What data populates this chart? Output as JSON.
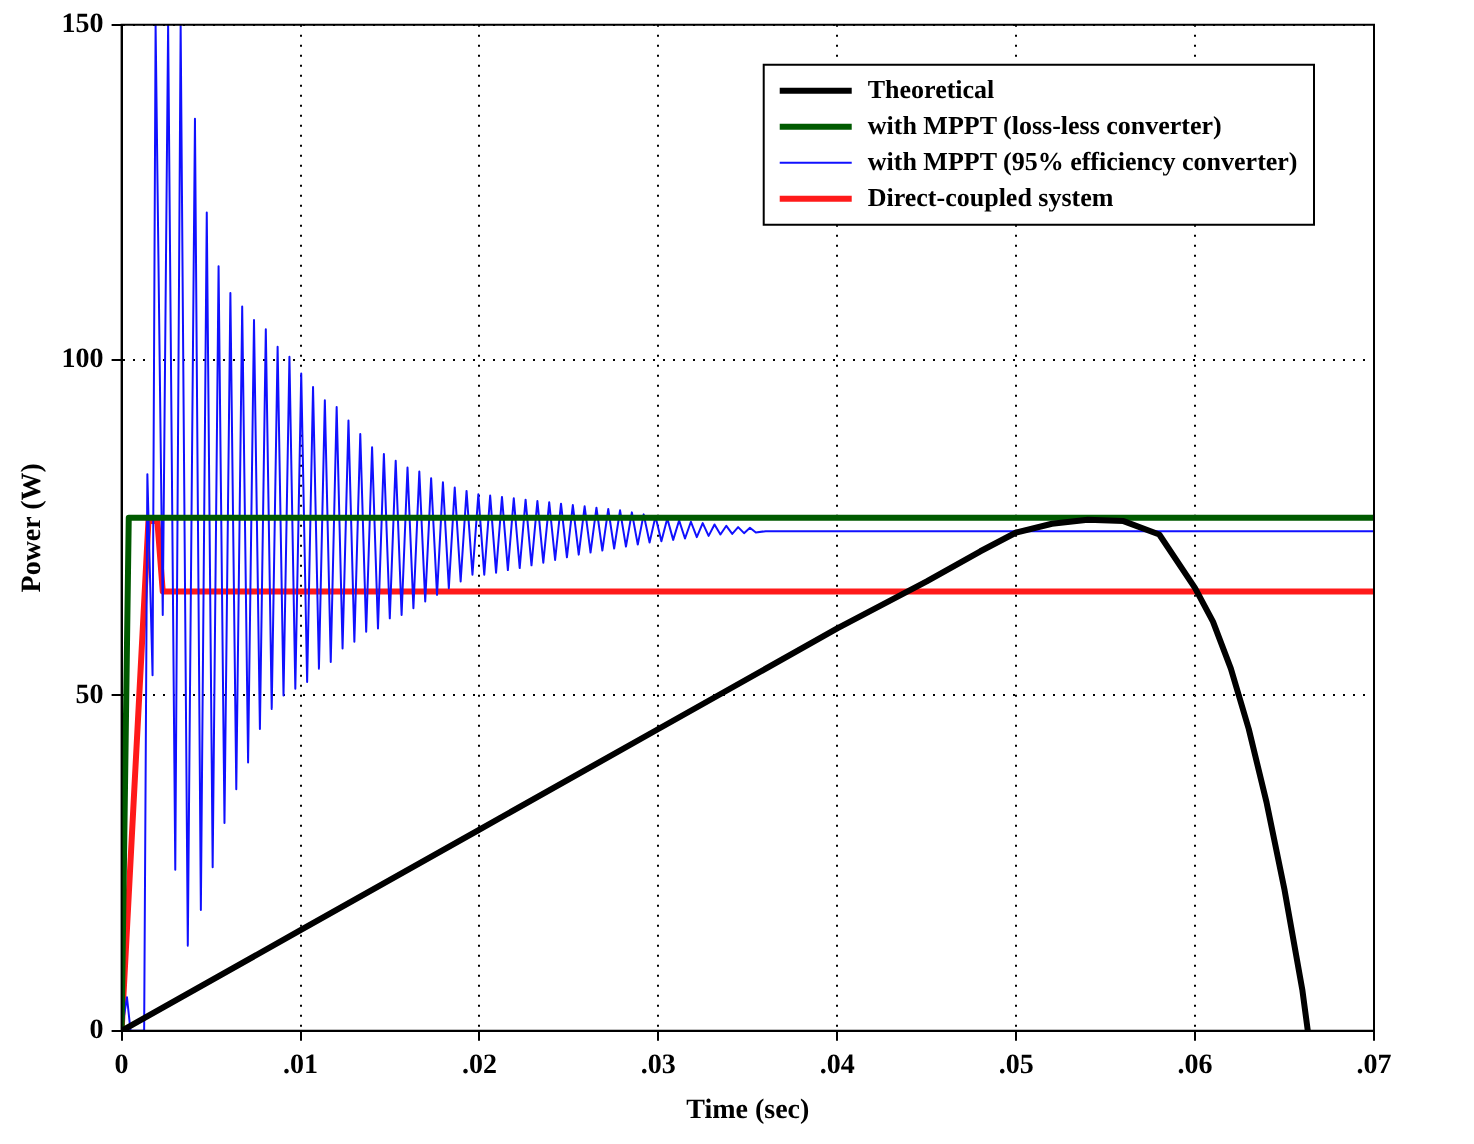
{
  "chart_data": {
    "type": "line",
    "xlabel": "Time (sec)",
    "ylabel": "Power (W)",
    "xlim": [
      0,
      0.07
    ],
    "xticks": [
      0,
      {
        "value": 0.01,
        "label": ".01"
      },
      {
        "value": 0.02,
        "label": ".02"
      },
      {
        "value": 0.03,
        "label": ".03"
      },
      {
        "value": 0.04,
        "label": ".04"
      },
      {
        "value": 0.05,
        "label": ".05"
      },
      {
        "value": 0.06,
        "label": ".06"
      },
      {
        "value": 0.07,
        "label": ".07"
      }
    ],
    "ylim": [
      0,
      150
    ],
    "yticks": [
      0,
      50,
      100,
      150
    ],
    "grid": true,
    "legend": "top right",
    "marker": "none",
    "line_style": "solid",
    "series": [
      {
        "name": "Theoretical",
        "color": "#000000",
        "x": [
          0,
          0.01,
          0.02,
          0.03,
          0.04,
          0.045,
          0.048,
          0.05,
          0.052,
          0.054,
          0.056,
          0.058,
          0.06,
          0.061,
          0.062,
          0.063,
          0.064,
          0.065,
          0.066,
          0.0663
        ],
        "values": [
          0,
          15,
          30,
          45,
          60,
          67,
          71.5,
          74.3,
          75.6,
          76.2,
          76,
          74,
          66,
          61,
          54,
          45,
          34,
          21,
          6,
          0
        ]
      },
      {
        "name": "with MPPT (loss-less converter)",
        "color": "#005a00",
        "x": [
          0,
          0.0004,
          0.07
        ],
        "values": [
          0,
          76.5,
          76.5
        ]
      },
      {
        "name": "with MPPT (95% efficiency converter)",
        "color": "#1010ff",
        "x": [
          0,
          0.0003,
          0.0005,
          0.00126,
          0.00144,
          0.00173,
          0.0019,
          0.0023,
          0.0026,
          0.003,
          0.0033,
          0.0037,
          0.0041,
          0.00443,
          0.00476,
          0.00509,
          0.00542,
          0.00575,
          0.00608,
          0.00641,
          0.00674,
          0.00707,
          0.0074,
          0.00773,
          0.00806,
          0.00839,
          0.00872,
          0.00905,
          0.00938,
          0.00971,
          0.01004,
          0.01037,
          0.0107,
          0.01103,
          0.01136,
          0.01169,
          0.01202,
          0.01235,
          0.01268,
          0.01301,
          0.01334,
          0.01367,
          0.014,
          0.01433,
          0.01466,
          0.01499,
          0.01532,
          0.01565,
          0.01598,
          0.01631,
          0.01664,
          0.01697,
          0.0173,
          0.01763,
          0.01796,
          0.01829,
          0.01862,
          0.01895,
          0.01928,
          0.01961,
          0.01994,
          0.02027,
          0.0206,
          0.02093,
          0.02126,
          0.02159,
          0.02192,
          0.02225,
          0.02258,
          0.02291,
          0.02324,
          0.02357,
          0.0239,
          0.02423,
          0.02456,
          0.02489,
          0.02522,
          0.02555,
          0.02588,
          0.02621,
          0.02654,
          0.02687,
          0.0272,
          0.02753,
          0.02786,
          0.02819,
          0.02852,
          0.02885,
          0.02918,
          0.02951,
          0.02984,
          0.03017,
          0.0305,
          0.03083,
          0.03116,
          0.03149,
          0.03182,
          0.03215,
          0.03248,
          0.03281,
          0.03314,
          0.03347,
          0.0338,
          0.03413,
          0.03446,
          0.03479,
          0.03512,
          0.03545,
          0.036,
          0.07
        ],
        "values": [
          0,
          5,
          0,
          0,
          83,
          53,
          150,
          62,
          150,
          24,
          150,
          12.7,
          136,
          18,
          122,
          24.4,
          114,
          31,
          110,
          36,
          108,
          40,
          106,
          45,
          104.6,
          48,
          102,
          50,
          100.5,
          51,
          98,
          52,
          96,
          54,
          94,
          55,
          93,
          57,
          91,
          58,
          89,
          59.5,
          87,
          60,
          86,
          61.5,
          85,
          62,
          84,
          63,
          83.4,
          64,
          82.4,
          65,
          81.8,
          66,
          81,
          67,
          80.5,
          68,
          80,
          68,
          79.8,
          68.3,
          79.6,
          68.7,
          79.4,
          69,
          79.2,
          69.4,
          79,
          69.8,
          78.8,
          70.2,
          78.6,
          70.6,
          78.4,
          71,
          78.2,
          71.3,
          78,
          71.6,
          77.8,
          71.9,
          77.6,
          72.2,
          77.3,
          72.5,
          77,
          72.8,
          76.7,
          73,
          76.4,
          73.2,
          76.1,
          73.4,
          75.9,
          73.6,
          75.7,
          73.8,
          75.5,
          74,
          75.3,
          74.1,
          75.1,
          74.2,
          75,
          74.3,
          74.5,
          74.5
        ]
      },
      {
        "name": "Direct-coupled system",
        "color": "#ff1a1a",
        "x": [
          0,
          0.0015,
          0.002,
          0.0023,
          0.07
        ],
        "values": [
          0,
          76,
          76,
          65.5,
          65.5
        ]
      }
    ]
  }
}
